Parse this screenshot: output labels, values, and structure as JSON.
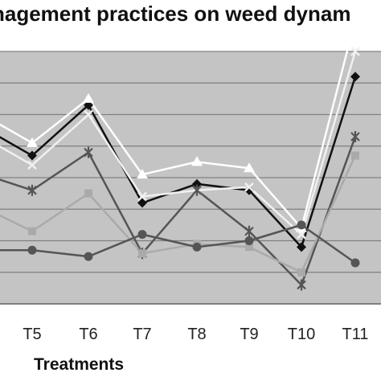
{
  "chart_data": {
    "type": "line",
    "title": "nagement practices on weed dynam",
    "xlabel": "Treatments",
    "ylabel": "",
    "categories": [
      "",
      "T5",
      "T6",
      "T7",
      "T8",
      "T9",
      "T10",
      "T11"
    ],
    "ylim": [
      0,
      8
    ],
    "grid": true,
    "series": [
      {
        "color": "#111111",
        "marker": "diamond",
        "values": [
          5.4,
          4.7,
          6.3,
          3.2,
          3.8,
          3.6,
          1.8,
          7.2
        ]
      },
      {
        "color": "#ffffff",
        "marker": "triangle",
        "values": [
          5.8,
          5.1,
          6.5,
          4.1,
          4.5,
          4.3,
          2.4,
          9.0
        ]
      },
      {
        "color": "#f0f0f0",
        "marker": "cross",
        "values": [
          5.1,
          4.4,
          6.0,
          3.4,
          3.6,
          3.7,
          2.2,
          8.0
        ]
      },
      {
        "color": "#555555",
        "marker": "star",
        "values": [
          4.0,
          3.6,
          4.8,
          1.6,
          3.6,
          2.3,
          0.6,
          5.3
        ]
      },
      {
        "color": "#aaaaaa",
        "marker": "square",
        "values": [
          2.9,
          2.3,
          3.5,
          1.6,
          1.9,
          1.8,
          1.0,
          4.7
        ]
      },
      {
        "color": "#555555",
        "marker": "circle",
        "values": [
          1.7,
          1.7,
          1.5,
          2.2,
          1.8,
          2.0,
          2.5,
          1.3
        ]
      }
    ]
  }
}
